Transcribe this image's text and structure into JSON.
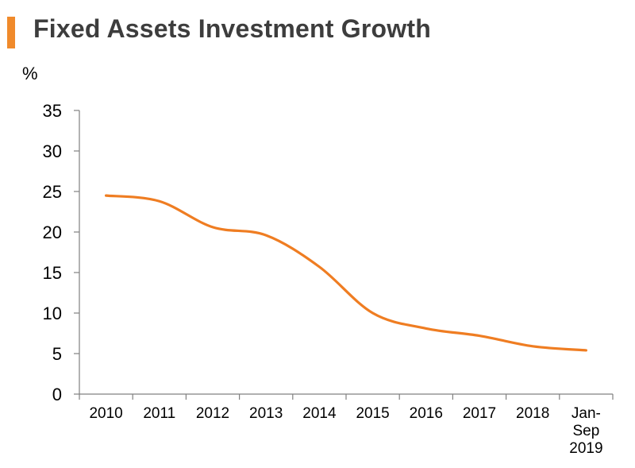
{
  "title": "Fixed Assets Investment Growth",
  "unit_label": "%",
  "colors": {
    "accent": "#f08a2b",
    "line": "#ef7d22",
    "axis": "#808080",
    "title": "#3d3d3d"
  },
  "chart_data": {
    "type": "line",
    "title": "Fixed Assets Investment Growth",
    "ylabel": "%",
    "xlabel": "",
    "categories": [
      "2010",
      "2011",
      "2012",
      "2013",
      "2014",
      "2015",
      "2016",
      "2017",
      "2018",
      "Jan-Sep 2019"
    ],
    "category_lines": [
      [
        "2010"
      ],
      [
        "2011"
      ],
      [
        "2012"
      ],
      [
        "2013"
      ],
      [
        "2014"
      ],
      [
        "2015"
      ],
      [
        "2016"
      ],
      [
        "2017"
      ],
      [
        "2018"
      ],
      [
        "Jan-",
        "Sep",
        "2019"
      ]
    ],
    "series": [
      {
        "name": "Fixed Assets Investment Growth",
        "values": [
          24.5,
          23.8,
          20.6,
          19.6,
          15.7,
          10.0,
          8.1,
          7.2,
          5.9,
          5.4
        ]
      }
    ],
    "ylim": [
      0,
      35
    ],
    "yticks": [
      0,
      5,
      10,
      15,
      20,
      25,
      30,
      35
    ],
    "grid": false,
    "legend": "none"
  }
}
